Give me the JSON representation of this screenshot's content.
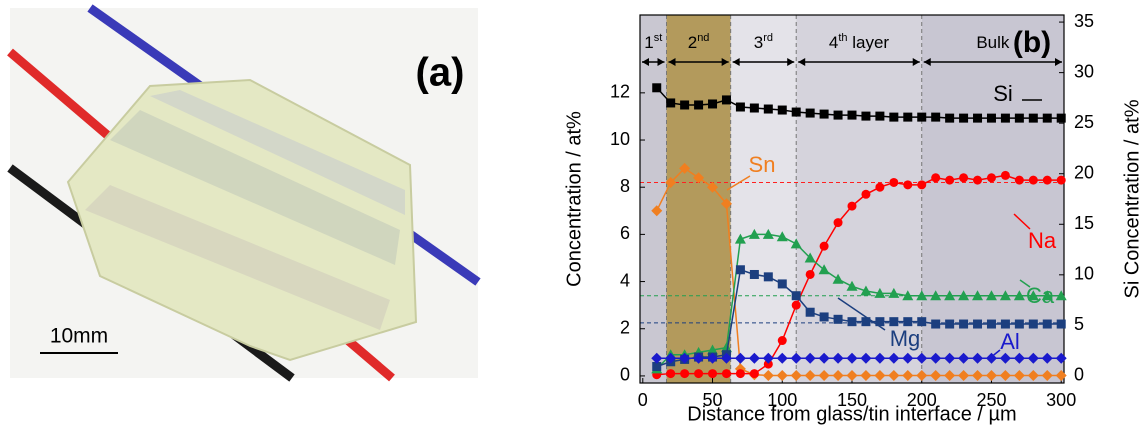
{
  "photo": {
    "label": "(a)",
    "scale_bar": "10mm"
  },
  "chart_data": {
    "type": "line",
    "panel_label": "(b)",
    "x_label": "Distance from glass/tin interface / µm",
    "y_label": "Concentration / at%",
    "y2_label": "Si Concentration / at%",
    "xlim": [
      -2,
      302
    ],
    "ylim": [
      -0.3,
      15.3
    ],
    "y2lim": [
      -0.7,
      35.7
    ],
    "xticks": [
      0,
      50,
      100,
      150,
      200,
      250,
      300
    ],
    "yticks": [
      0,
      2,
      4,
      6,
      8,
      10,
      12
    ],
    "y2ticks": [
      0,
      5,
      10,
      15,
      20,
      25,
      30,
      35
    ],
    "boundaries": [
      17,
      63,
      110,
      200
    ],
    "layers": [
      {
        "label": [
          "1",
          "st"
        ],
        "color": "#c9c7d1"
      },
      {
        "label": [
          "2",
          "nd"
        ],
        "color": "#b39a5c"
      },
      {
        "label": [
          "3",
          "rd"
        ],
        "color": "#e4e3e9"
      },
      {
        "label": [
          "4",
          "th",
          " layer"
        ],
        "color": "#d5d3dc"
      },
      {
        "label": [
          "Bulk"
        ],
        "color": "#c8c6d2"
      }
    ],
    "reference_lines": [
      {
        "value": 8.2,
        "color": "#ff2020"
      },
      {
        "value": 3.4,
        "color": "#22a050"
      },
      {
        "value": 2.25,
        "color": "#1c3f7f"
      }
    ],
    "x": [
      10,
      20,
      30,
      40,
      50,
      60,
      70,
      80,
      90,
      100,
      110,
      120,
      130,
      140,
      150,
      160,
      170,
      180,
      190,
      200,
      210,
      220,
      230,
      240,
      250,
      260,
      270,
      280,
      290,
      300
    ],
    "series": [
      {
        "name": "Si",
        "color": "#000000",
        "marker": "square",
        "axis": "y2",
        "values": [
          28.5,
          27.0,
          26.8,
          26.8,
          26.9,
          27.3,
          26.6,
          26.5,
          26.4,
          26.3,
          26.1,
          26.0,
          25.9,
          25.8,
          25.8,
          25.7,
          25.7,
          25.6,
          25.6,
          25.6,
          25.6,
          25.5,
          25.5,
          25.5,
          25.5,
          25.5,
          25.5,
          25.5,
          25.5,
          25.5
        ]
      },
      {
        "name": "Sn",
        "color": "#f07f20",
        "marker": "diamond",
        "values": [
          7.0,
          8.2,
          8.8,
          8.4,
          8.0,
          7.3,
          0.3,
          0.05,
          0.02,
          0.02,
          0.02,
          0.02,
          0.02,
          0.02,
          0.02,
          0.02,
          0.02,
          0.02,
          0.02,
          0.02,
          0.02,
          0.02,
          0.02,
          0.02,
          0.02,
          0.02,
          0.02,
          0.02,
          0.02,
          0.02
        ]
      },
      {
        "name": "Na",
        "color": "#ff0000",
        "marker": "circle",
        "values": [
          0.05,
          0.1,
          0.1,
          0.1,
          0.1,
          0.1,
          0.1,
          0.1,
          0.5,
          1.5,
          3.0,
          4.3,
          5.5,
          6.5,
          7.2,
          7.7,
          8.0,
          8.2,
          8.1,
          8.1,
          8.4,
          8.3,
          8.4,
          8.3,
          8.4,
          8.5,
          8.3,
          8.3,
          8.3,
          8.3
        ]
      },
      {
        "name": "Ca",
        "color": "#22a050",
        "marker": "triangle",
        "values": [
          0.3,
          0.9,
          0.9,
          1.0,
          1.1,
          1.2,
          5.8,
          6.0,
          6.0,
          5.9,
          5.6,
          5.0,
          4.5,
          4.1,
          3.8,
          3.6,
          3.5,
          3.5,
          3.4,
          3.4,
          3.4,
          3.4,
          3.4,
          3.4,
          3.4,
          3.4,
          3.4,
          3.4,
          3.4,
          3.4
        ]
      },
      {
        "name": "Mg",
        "color": "#1c3f7f",
        "marker": "square",
        "values": [
          0.4,
          0.6,
          0.7,
          0.8,
          0.8,
          0.9,
          4.5,
          4.3,
          4.2,
          3.9,
          3.4,
          2.7,
          2.5,
          2.4,
          2.3,
          2.3,
          2.3,
          2.3,
          2.3,
          2.3,
          2.2,
          2.2,
          2.2,
          2.2,
          2.2,
          2.2,
          2.2,
          2.2,
          2.2,
          2.2
        ]
      },
      {
        "name": "Al",
        "color": "#1a1acc",
        "marker": "diamond",
        "values": [
          0.75,
          0.75,
          0.75,
          0.75,
          0.75,
          0.75,
          0.75,
          0.75,
          0.75,
          0.75,
          0.75,
          0.75,
          0.75,
          0.75,
          0.75,
          0.75,
          0.75,
          0.75,
          0.75,
          0.75,
          0.75,
          0.75,
          0.75,
          0.75,
          0.75,
          0.75,
          0.75,
          0.75,
          0.75,
          0.75
        ]
      }
    ]
  }
}
